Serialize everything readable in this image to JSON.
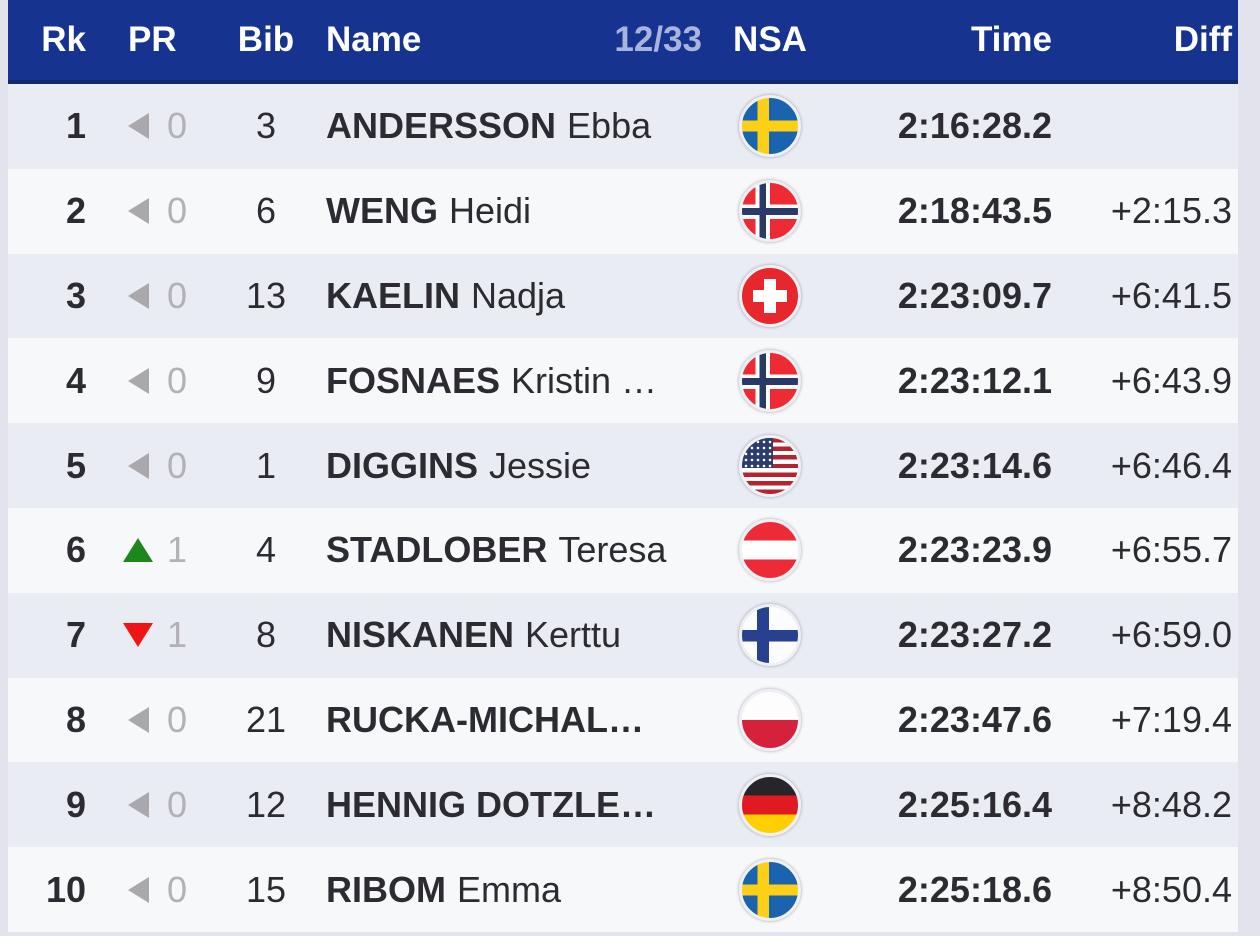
{
  "colors": {
    "header_bg": "#16338f",
    "header_border": "#10286e",
    "header_text": "#ffffff",
    "progress_text": "#a9b4dd",
    "row_odd": "#eaecf4",
    "row_even": "#f7f8f9",
    "page_bg": "#e3e3ee",
    "text": "#2b2b31",
    "muted": "#b1b1b6",
    "arrow_up": "#1d871d",
    "arrow_down": "#ef1515",
    "arrow_neutral": "#a9a9ad"
  },
  "table": {
    "header": {
      "rank": "Rk",
      "pr": "PR",
      "bib": "Bib",
      "name": "Name",
      "progress": "12/33",
      "nsa": "NSA",
      "time": "Time",
      "diff": "Diff"
    },
    "rows": [
      {
        "rank": "1",
        "pr_dir": "same",
        "pr_value": "0",
        "bib": "3",
        "last_name": "ANDERSSON",
        "first_name": "Ebba",
        "nsa": "SWE",
        "time": "2:16:28.2",
        "diff": ""
      },
      {
        "rank": "2",
        "pr_dir": "same",
        "pr_value": "0",
        "bib": "6",
        "last_name": "WENG",
        "first_name": "Heidi",
        "nsa": "NOR",
        "time": "2:18:43.5",
        "diff": "+2:15.3"
      },
      {
        "rank": "3",
        "pr_dir": "same",
        "pr_value": "0",
        "bib": "13",
        "last_name": "KAELIN",
        "first_name": "Nadja",
        "nsa": "SUI",
        "time": "2:23:09.7",
        "diff": "+6:41.5"
      },
      {
        "rank": "4",
        "pr_dir": "same",
        "pr_value": "0",
        "bib": "9",
        "last_name": "FOSNAES",
        "first_name": "Kristin …",
        "nsa": "NOR",
        "time": "2:23:12.1",
        "diff": "+6:43.9"
      },
      {
        "rank": "5",
        "pr_dir": "same",
        "pr_value": "0",
        "bib": "1",
        "last_name": "DIGGINS",
        "first_name": "Jessie",
        "nsa": "USA",
        "time": "2:23:14.6",
        "diff": "+6:46.4"
      },
      {
        "rank": "6",
        "pr_dir": "up",
        "pr_value": "1",
        "bib": "4",
        "last_name": "STADLOBER",
        "first_name": "Teresa",
        "nsa": "AUT",
        "time": "2:23:23.9",
        "diff": "+6:55.7"
      },
      {
        "rank": "7",
        "pr_dir": "down",
        "pr_value": "1",
        "bib": "8",
        "last_name": "NISKANEN",
        "first_name": "Kerttu",
        "nsa": "FIN",
        "time": "2:23:27.2",
        "diff": "+6:59.0"
      },
      {
        "rank": "8",
        "pr_dir": "same",
        "pr_value": "0",
        "bib": "21",
        "last_name": "RUCKA-MICHAL…",
        "first_name": "",
        "nsa": "POL",
        "time": "2:23:47.6",
        "diff": "+7:19.4"
      },
      {
        "rank": "9",
        "pr_dir": "same",
        "pr_value": "0",
        "bib": "12",
        "last_name": "HENNIG DOTZLE…",
        "first_name": "",
        "nsa": "GER",
        "time": "2:25:16.4",
        "diff": "+8:48.2"
      },
      {
        "rank": "10",
        "pr_dir": "same",
        "pr_value": "0",
        "bib": "15",
        "last_name": "RIBOM",
        "first_name": "Emma",
        "nsa": "SWE",
        "time": "2:25:18.6",
        "diff": "+8:50.4"
      }
    ]
  }
}
